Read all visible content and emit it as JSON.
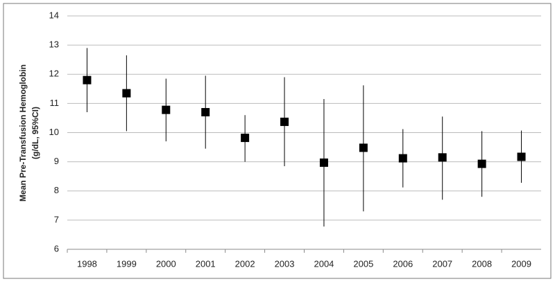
{
  "chart_data": {
    "type": "errorbar",
    "y_label": [
      "Mean Pre-Transfusion Hemoglobin",
      "(g/dL, 95%CI)"
    ],
    "categories": [
      "1998",
      "1999",
      "2000",
      "2001",
      "2002",
      "2003",
      "2004",
      "2005",
      "2006",
      "2007",
      "2008",
      "2009"
    ],
    "series": [
      {
        "color": "#000000",
        "values": [
          11.8,
          11.35,
          10.78,
          10.7,
          9.82,
          10.37,
          8.97,
          9.48,
          9.12,
          9.15,
          8.93,
          9.17
        ],
        "lower": [
          10.7,
          10.05,
          9.7,
          9.45,
          9.0,
          8.85,
          6.78,
          7.3,
          8.12,
          7.7,
          7.8,
          8.28
        ],
        "upper": [
          12.9,
          12.65,
          11.85,
          11.95,
          10.6,
          11.9,
          11.15,
          11.62,
          10.12,
          10.55,
          10.05,
          10.07
        ]
      }
    ],
    "ylim": [
      6,
      14
    ],
    "yticks": [
      6,
      7,
      8,
      9,
      10,
      11,
      12,
      13,
      14
    ],
    "grid": true
  }
}
